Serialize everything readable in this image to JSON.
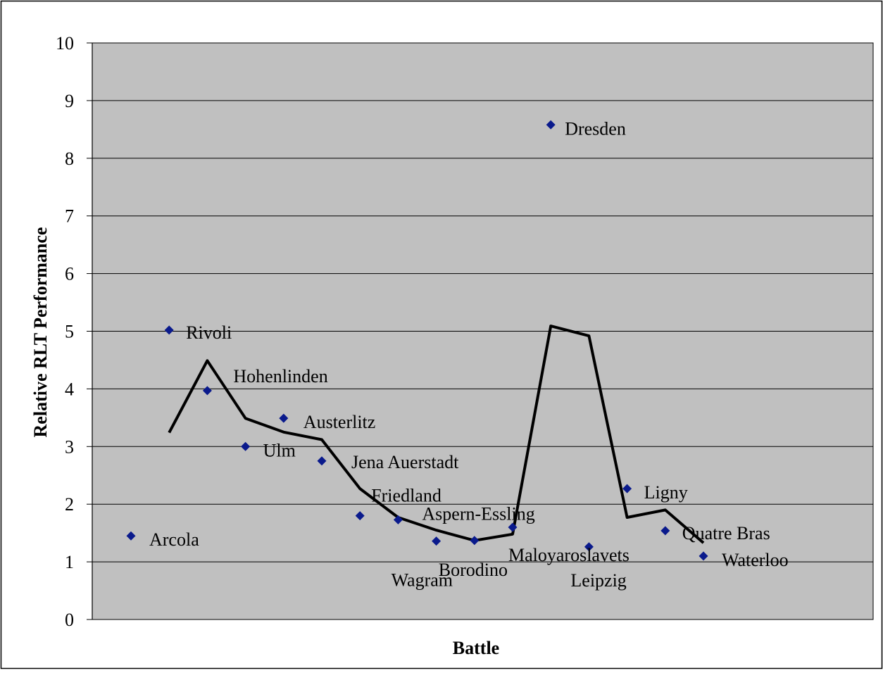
{
  "chart_data": {
    "type": "scatter",
    "title": "",
    "xlabel": "Battle",
    "ylabel": "Relative RLT Performance",
    "ylim": [
      0,
      10
    ],
    "yticks": [
      "0",
      "1",
      "2",
      "3",
      "4",
      "5",
      "6",
      "7",
      "8",
      "9",
      "10"
    ],
    "grid": "horizontal",
    "legend": "none",
    "colors": {
      "plot_background": "#c0c0c0",
      "marker": "#0a1a8c",
      "trend_line": "#000000",
      "grid": "#000000"
    },
    "series": [
      {
        "type": "scatter",
        "points": [
          {
            "label": "Arcola",
            "x": 1,
            "y": 1.45
          },
          {
            "label": "Rivoli",
            "x": 2,
            "y": 5.02
          },
          {
            "label": "Hohenlinden",
            "x": 3,
            "y": 3.97
          },
          {
            "label": "Ulm",
            "x": 4,
            "y": 3.0
          },
          {
            "label": "Austerlitz",
            "x": 5,
            "y": 3.49
          },
          {
            "label": "Jena Auerstadt",
            "x": 6,
            "y": 2.75
          },
          {
            "label": "Friedland",
            "x": 7,
            "y": 1.8
          },
          {
            "label": "Aspern-Essling",
            "x": 8,
            "y": 1.73
          },
          {
            "label": "Wagram",
            "x": 9,
            "y": 1.36
          },
          {
            "label": "Borodino",
            "x": 10,
            "y": 1.37
          },
          {
            "label": "Maloyaroslavets",
            "x": 11,
            "y": 1.6
          },
          {
            "label": "Dresden",
            "x": 12,
            "y": 8.58
          },
          {
            "label": "Leipzig",
            "x": 13,
            "y": 1.26
          },
          {
            "label": "Ligny",
            "x": 14,
            "y": 2.27
          },
          {
            "label": "Quatre Bras",
            "x": 15,
            "y": 1.54
          },
          {
            "label": "Waterloo",
            "x": 16,
            "y": 1.1
          }
        ]
      },
      {
        "type": "line",
        "x": [
          2,
          3,
          4,
          5,
          6,
          7,
          8,
          9,
          10,
          11,
          12,
          13,
          14,
          15,
          16
        ],
        "y": [
          3.24,
          4.49,
          3.49,
          3.25,
          3.12,
          2.27,
          1.77,
          1.55,
          1.37,
          1.48,
          5.09,
          4.92,
          1.77,
          1.9,
          1.33
        ]
      }
    ]
  }
}
